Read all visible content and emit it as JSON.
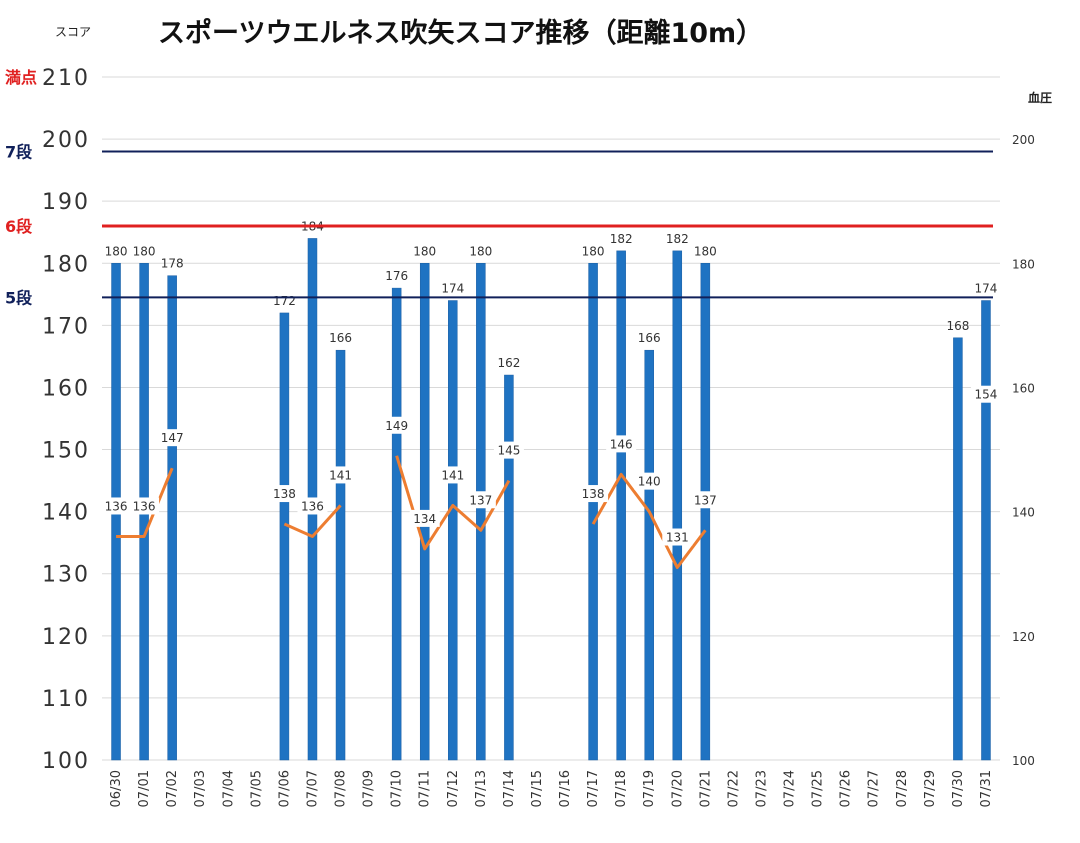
{
  "chart_data": {
    "type": "bar",
    "title": "スポーツウエルネス吹矢スコア推移（距離10m）",
    "y_left_label": "スコア",
    "y_right_label": "血圧",
    "y_left_range": [
      100,
      210
    ],
    "y_left_ticks": [
      "210",
      "200",
      "190",
      "180",
      "170",
      "160",
      "150",
      "140",
      "130",
      "120",
      "110",
      "100"
    ],
    "y_right_range": [
      100,
      210
    ],
    "y_right_ticks": [
      "200",
      "180",
      "160",
      "140",
      "120",
      "100"
    ],
    "grid": true,
    "categories": [
      "06/30",
      "07/01",
      "07/02",
      "07/03",
      "07/04",
      "07/05",
      "07/06",
      "07/07",
      "07/08",
      "07/09",
      "07/10",
      "07/11",
      "07/12",
      "07/13",
      "07/14",
      "07/15",
      "07/16",
      "07/17",
      "07/18",
      "07/19",
      "07/20",
      "07/21",
      "07/22",
      "07/23",
      "07/24",
      "07/25",
      "07/26",
      "07/27",
      "07/28",
      "07/29",
      "07/30",
      "07/31"
    ],
    "series": [
      {
        "kind": "bar",
        "color": "#1f73c2",
        "values": [
          180,
          180,
          178,
          null,
          null,
          null,
          172,
          184,
          166,
          null,
          176,
          180,
          174,
          180,
          162,
          null,
          null,
          180,
          182,
          166,
          182,
          180,
          null,
          null,
          null,
          null,
          null,
          null,
          null,
          null,
          168,
          174
        ]
      },
      {
        "kind": "line",
        "axis": "right",
        "color": "#ed7d31",
        "values": [
          136,
          136,
          147,
          null,
          null,
          null,
          138,
          136,
          141,
          null,
          149,
          134,
          141,
          137,
          145,
          null,
          null,
          138,
          146,
          140,
          131,
          137,
          null,
          null,
          null,
          null,
          null,
          null,
          null,
          null,
          null,
          154
        ]
      }
    ],
    "reference_lines": [
      {
        "label": "満点",
        "value": 210,
        "color": "#e02020",
        "line": false
      },
      {
        "label": "7段",
        "value": 198,
        "color": "#10205a",
        "line": true
      },
      {
        "label": "6段",
        "value": 186,
        "color": "#e02020",
        "line": true
      },
      {
        "label": "5段",
        "value": 174.5,
        "color": "#10205a",
        "line": true
      }
    ]
  }
}
